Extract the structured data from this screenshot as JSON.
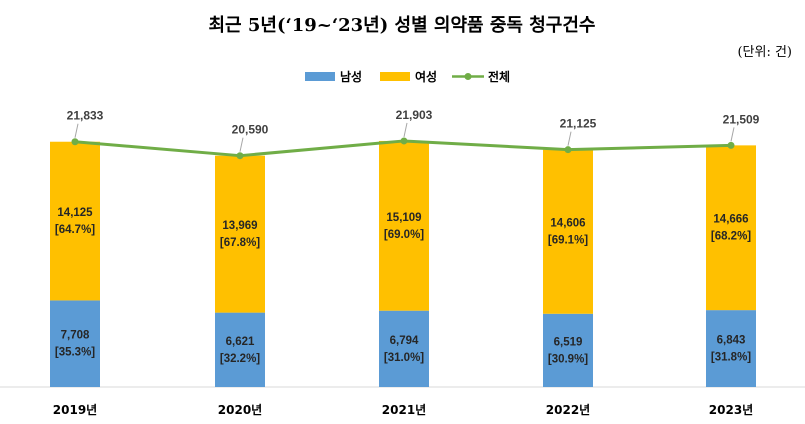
{
  "chart_data": {
    "type": "bar",
    "stacked": true,
    "title": "최근 5년(‘19~‘23년) 성별 의약품 중독 청구건수",
    "unit_label": "(단위: 건)",
    "categories": [
      "2019년",
      "2020년",
      "2021년",
      "2022년",
      "2023년"
    ],
    "series": [
      {
        "name": "남성",
        "color": "#5B9BD5",
        "values": [
          7708,
          6621,
          6794,
          6519,
          6843
        ],
        "value_labels": [
          "7,708",
          "6,621",
          "6,794",
          "6,519",
          "6,843"
        ],
        "percent_labels": [
          "[35.3%]",
          "[32.2%]",
          "[31.0%]",
          "[30.9%]",
          "[31.8%]"
        ]
      },
      {
        "name": "여성",
        "color": "#FFC000",
        "values": [
          14125,
          13969,
          15109,
          14606,
          14666
        ],
        "value_labels": [
          "14,125",
          "13,969",
          "15,109",
          "14,606",
          "14,666"
        ],
        "percent_labels": [
          "[64.7%]",
          "[67.8%]",
          "[69.0%]",
          "[69.1%]",
          "[68.2%]"
        ]
      }
    ],
    "line": {
      "name": "전체",
      "color": "#70AD47",
      "values": [
        21833,
        20590,
        21903,
        21125,
        21509
      ],
      "value_labels": [
        "21,833",
        "20,590",
        "21,903",
        "21,125",
        "21,509"
      ]
    },
    "legend_position": "top-right",
    "ylim": [
      0,
      23500
    ],
    "grid": false
  }
}
